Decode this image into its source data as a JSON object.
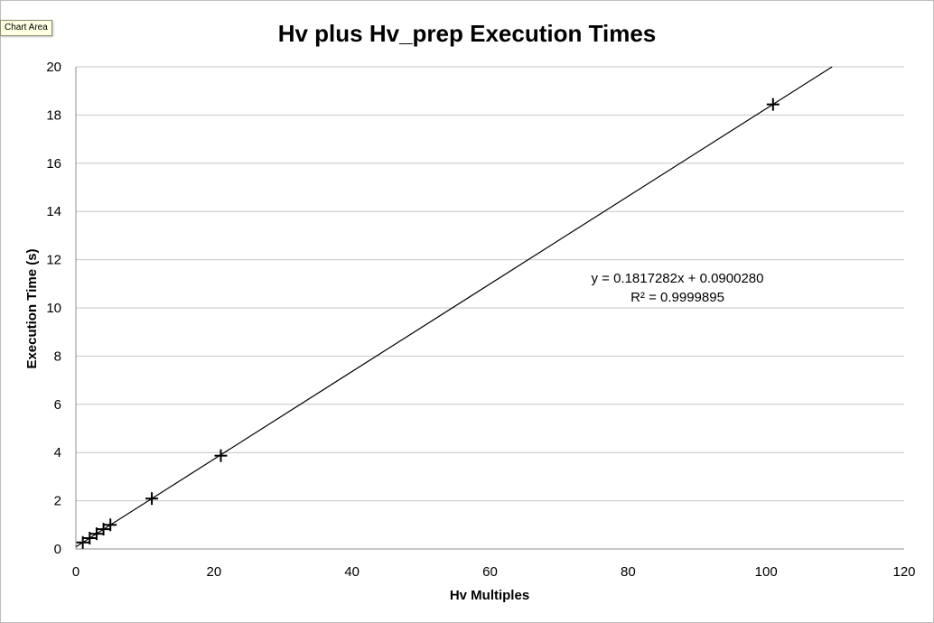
{
  "tooltip": {
    "label": "Chart Area"
  },
  "chart_data": {
    "type": "scatter",
    "title": "Hv plus Hv_prep Execution Times",
    "xlabel": "Hv Multiples",
    "ylabel": "Execution Time (s)",
    "xlim": [
      0,
      120
    ],
    "ylim": [
      0,
      20
    ],
    "x_ticks": [
      0,
      20,
      40,
      60,
      80,
      100,
      120
    ],
    "y_ticks": [
      0,
      2,
      4,
      6,
      8,
      10,
      12,
      14,
      16,
      18,
      20
    ],
    "grid": {
      "horizontal": true,
      "vertical": false
    },
    "series": [
      {
        "marker": "plus",
        "x": [
          1,
          2,
          3,
          4,
          5,
          11,
          21,
          101
        ],
        "y": [
          0.27,
          0.45,
          0.63,
          0.82,
          1.0,
          2.09,
          3.87,
          18.44
        ]
      }
    ],
    "trendline": {
      "type": "linear",
      "slope": 0.1817282,
      "intercept": 0.090028,
      "equation": "y = 0.1817282x + 0.0900280",
      "r_squared": "R² = 0.9999895"
    },
    "colors": {
      "gridline": "#c6c6c6",
      "axis": "#8f8f8f",
      "series": "#000000"
    }
  }
}
